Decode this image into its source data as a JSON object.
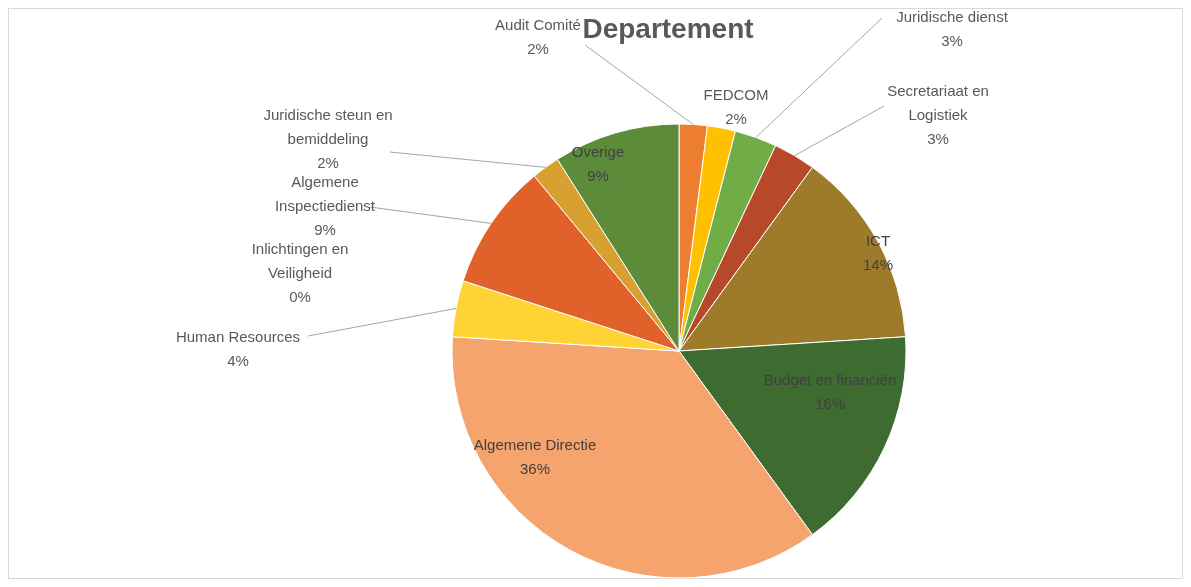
{
  "chart_data": {
    "type": "pie",
    "title": "Departement",
    "categories": [
      "Audit Comité",
      "FEDCOM",
      "Juridische dienst",
      "Secretariaat en Logistiek",
      "ICT",
      "Budget en financiën",
      "Algemene Directie",
      "Human Resources",
      "Inlichtingen en Veiligheid",
      "Algemene Inspectiedienst",
      "Juridische steun en bemiddeling",
      "Overige"
    ],
    "values": [
      2,
      2,
      3,
      3,
      14,
      16,
      36,
      4,
      0,
      9,
      2,
      9
    ],
    "value_labels": [
      "2%",
      "2%",
      "3%",
      "3%",
      "14%",
      "16%",
      "36%",
      "4%",
      "0%",
      "9%",
      "2%",
      "9%"
    ],
    "colors": [
      "#ed7d31",
      "#ffc000",
      "#70ad47",
      "#b8482a",
      "#9e7b2b",
      "#3e6b2f",
      "#f4a46c",
      "#ffd333",
      "#a5a5a5",
      "#e0612a",
      "#d8a031",
      "#5c8c3a"
    ],
    "legend": false
  }
}
